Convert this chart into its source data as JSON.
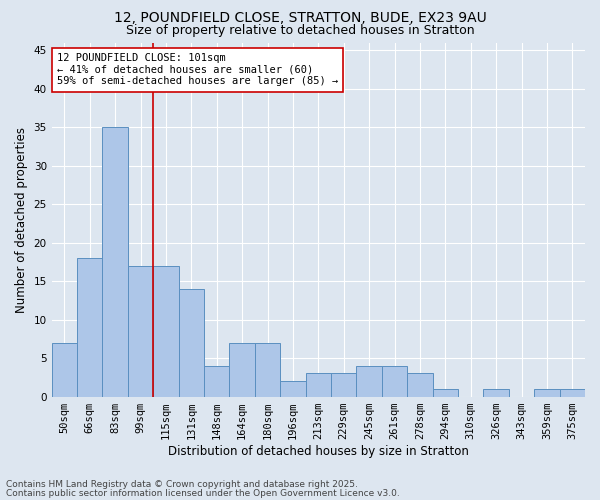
{
  "title1": "12, POUNDFIELD CLOSE, STRATTON, BUDE, EX23 9AU",
  "title2": "Size of property relative to detached houses in Stratton",
  "xlabel": "Distribution of detached houses by size in Stratton",
  "ylabel": "Number of detached properties",
  "footnote1": "Contains HM Land Registry data © Crown copyright and database right 2025.",
  "footnote2": "Contains public sector information licensed under the Open Government Licence v3.0.",
  "annotation_line1": "12 POUNDFIELD CLOSE: 101sqm",
  "annotation_line2": "← 41% of detached houses are smaller (60)",
  "annotation_line3": "59% of semi-detached houses are larger (85) →",
  "categories": [
    "50sqm",
    "66sqm",
    "83sqm",
    "99sqm",
    "115sqm",
    "131sqm",
    "148sqm",
    "164sqm",
    "180sqm",
    "196sqm",
    "213sqm",
    "229sqm",
    "245sqm",
    "261sqm",
    "278sqm",
    "294sqm",
    "310sqm",
    "326sqm",
    "343sqm",
    "359sqm",
    "375sqm"
  ],
  "values": [
    7,
    18,
    35,
    17,
    17,
    14,
    4,
    7,
    7,
    2,
    3,
    3,
    4,
    4,
    3,
    1,
    0,
    1,
    0,
    1,
    1
  ],
  "bar_color": "#adc6e8",
  "bar_edge_color": "#5a8fc0",
  "vline_x_index": 3,
  "vline_color": "#cc0000",
  "ylim": [
    0,
    46
  ],
  "yticks": [
    0,
    5,
    10,
    15,
    20,
    25,
    30,
    35,
    40,
    45
  ],
  "bg_color": "#dde6f0",
  "grid_color": "#ffffff",
  "annotation_box_facecolor": "#ffffff",
  "annotation_box_edgecolor": "#cc0000",
  "title_fontsize": 10,
  "subtitle_fontsize": 9,
  "axis_label_fontsize": 8.5,
  "tick_fontsize": 7.5,
  "annotation_fontsize": 7.5,
  "footnote_fontsize": 6.5
}
